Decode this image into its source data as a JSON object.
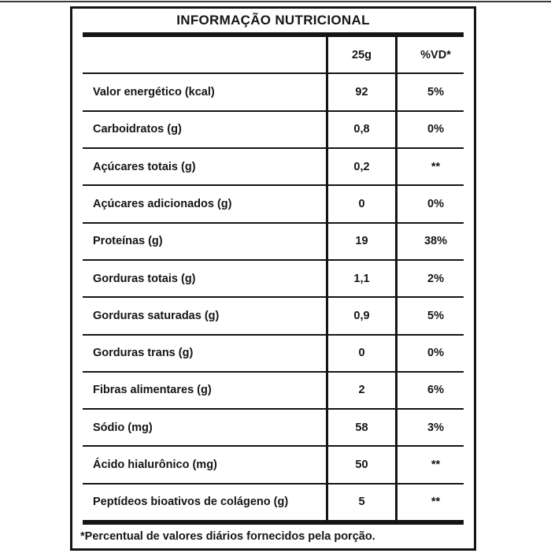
{
  "page": {
    "background_color": "#ffffff",
    "top_edge_line_color": "#3a3a3a",
    "ink_color": "#151515"
  },
  "table": {
    "title": "INFORMAÇÃO NUTRICIONAL",
    "columns": {
      "serving": "25g",
      "daily_value": "%VD*"
    },
    "rows": [
      {
        "label": "Valor energético (kcal)",
        "amount": "92",
        "dv": "5%"
      },
      {
        "label": "Carboidratos (g)",
        "amount": "0,8",
        "dv": "0%"
      },
      {
        "label": "Açúcares totais (g)",
        "amount": "0,2",
        "dv": "**"
      },
      {
        "label": "Açúcares adicionados (g)",
        "amount": "0",
        "dv": "0%"
      },
      {
        "label": "Proteínas (g)",
        "amount": "19",
        "dv": "38%"
      },
      {
        "label": "Gorduras totais (g)",
        "amount": "1,1",
        "dv": "2%"
      },
      {
        "label": "Gorduras saturadas (g)",
        "amount": "0,9",
        "dv": "5%"
      },
      {
        "label": "Gorduras trans (g)",
        "amount": "0",
        "dv": "0%"
      },
      {
        "label": "Fibras alimentares (g)",
        "amount": "2",
        "dv": "6%"
      },
      {
        "label": "Sódio (mg)",
        "amount": "58",
        "dv": "3%"
      },
      {
        "label": "Ácido hialurônico (mg)",
        "amount": "50",
        "dv": "**"
      },
      {
        "label": "Peptídeos bioativos de colágeno (g)",
        "amount": "5",
        "dv": "**"
      }
    ],
    "footnote": "*Percentual de valores diários fornecidos pela porção."
  }
}
